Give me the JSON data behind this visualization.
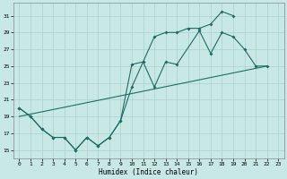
{
  "xlabel": "Humidex (Indice chaleur)",
  "bg_color": "#c8e8e5",
  "grid_color": "#afd4d0",
  "line_color": "#1a6e64",
  "xlim": [
    -0.5,
    23.5
  ],
  "ylim": [
    14.0,
    32.5
  ],
  "xticks": [
    0,
    1,
    2,
    3,
    4,
    5,
    6,
    7,
    8,
    9,
    10,
    11,
    12,
    13,
    14,
    15,
    16,
    17,
    18,
    19,
    20,
    21,
    22,
    23
  ],
  "yticks": [
    15,
    17,
    19,
    21,
    23,
    25,
    27,
    29,
    31
  ],
  "series1_x": [
    0,
    1,
    2,
    3,
    4,
    5,
    6,
    7,
    8,
    9,
    10,
    11,
    12,
    13,
    14,
    15,
    16,
    17,
    18,
    19
  ],
  "series1_y": [
    20.0,
    19.0,
    17.5,
    16.5,
    16.5,
    15.0,
    16.5,
    15.5,
    16.5,
    18.5,
    25.2,
    25.5,
    28.5,
    29.0,
    29.0,
    29.5,
    29.5,
    30.0,
    31.5,
    31.0
  ],
  "series2_x": [
    0,
    1,
    2,
    3,
    4,
    5,
    6,
    7,
    8,
    9,
    10,
    11,
    12,
    13,
    14,
    16,
    17,
    18,
    19,
    20,
    21,
    22
  ],
  "series2_y": [
    20.0,
    19.0,
    17.5,
    16.5,
    16.5,
    15.0,
    16.5,
    15.5,
    16.5,
    18.5,
    22.5,
    25.5,
    22.5,
    25.5,
    25.2,
    29.2,
    26.5,
    29.0,
    28.5,
    27.0,
    25.0,
    25.0
  ],
  "series3_x": [
    0,
    22
  ],
  "series3_y": [
    19.0,
    25.0
  ],
  "marker_size": 2.0,
  "lw": 0.8
}
